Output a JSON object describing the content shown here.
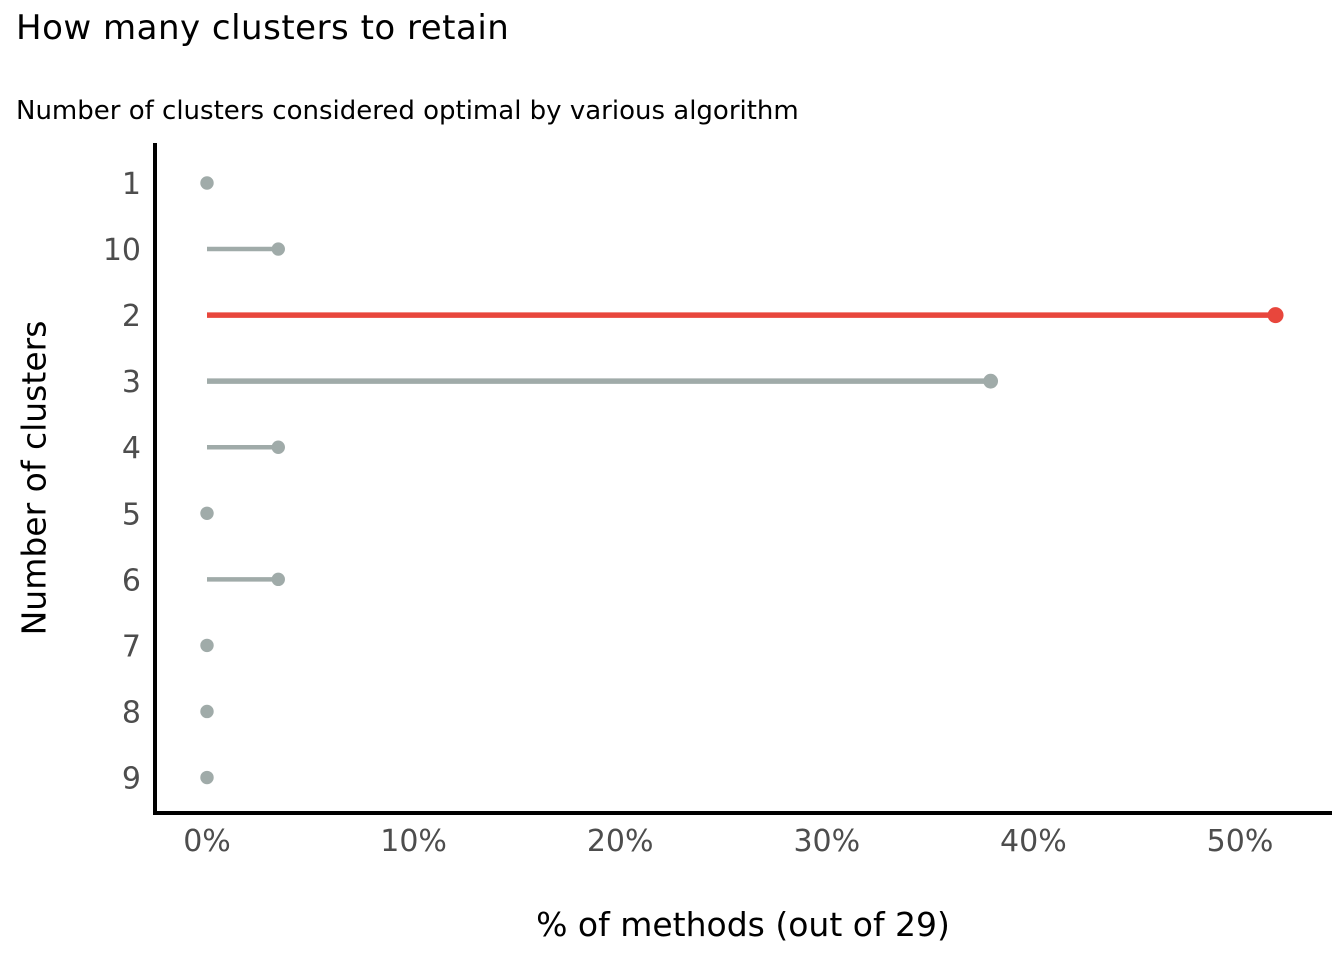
{
  "chart_data": {
    "type": "bar",
    "variant": "horizontal-lollipop",
    "title": "How many clusters to retain",
    "subtitle": "Number of clusters considered optimal by various algorithm",
    "ylabel": "Number of clusters",
    "xlabel": "% of methods (out of 29)",
    "total_methods": 29,
    "categories": [
      "1",
      "10",
      "2",
      "3",
      "4",
      "5",
      "6",
      "7",
      "8",
      "9"
    ],
    "values": [
      0,
      3.45,
      51.72,
      37.93,
      3.45,
      0,
      3.45,
      0,
      0,
      0
    ],
    "highlight_category": "2",
    "x_ticks": [
      {
        "label": "0%",
        "value": 0
      },
      {
        "label": "10%",
        "value": 10
      },
      {
        "label": "20%",
        "value": 20
      },
      {
        "label": "30%",
        "value": 30
      },
      {
        "label": "40%",
        "value": 40
      },
      {
        "label": "50%",
        "value": 50
      }
    ],
    "xlim": [
      -2.5,
      54.4
    ],
    "grid": false,
    "legend": "none",
    "colors": {
      "highlight": "#e8463c",
      "default": "#a0aba9",
      "axis": "#000000",
      "tick_label": "#4d4d4d",
      "text": "#000000",
      "background": "#ffffff"
    }
  }
}
